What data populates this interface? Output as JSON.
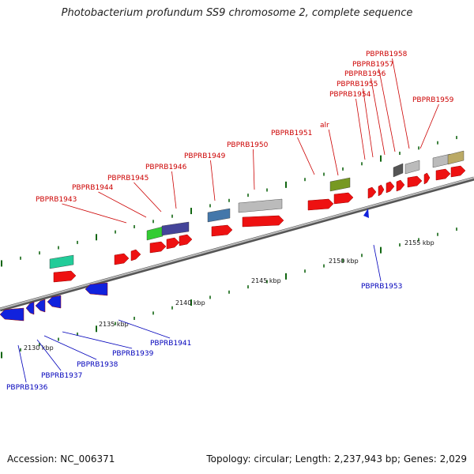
{
  "header": {
    "title": "Photobacterium profundum SS9 chromosome 2, complete sequence"
  },
  "footer": {
    "accession": "Accession: NC_006371",
    "topology": "Topology: circular; Length: 2,237,943 bp; Genes: 2,029"
  },
  "colors": {
    "forward_gene": "#ee1111",
    "reverse_gene": "#1122dd",
    "forward_label": "#cc0000",
    "reverse_label": "#0000bb",
    "backbone": "#888888",
    "tick": "#116611",
    "cog_teal": "#22cc99",
    "cog_green": "#33cc33",
    "cog_purple": "#444499",
    "cog_steel": "#4477aa",
    "cog_grey": "#bbbbbb",
    "cog_olive": "#779922",
    "cog_dark": "#555555",
    "cog_khaki": "#bbaa66"
  },
  "scale_labels": [
    "2130 kbp",
    "2135 kbp",
    "2140 kbp",
    "2145 kbp",
    "2150 kbp",
    "2155 kbp"
  ],
  "forward_genes": [
    "PBPRB1943",
    "PBPRB1944",
    "PBPRB1945",
    "PBPRB1946",
    "PBPRB1949",
    "PBPRB1950",
    "PBPRB1951",
    "alr",
    "PBPRB1954",
    "PBPRB1955",
    "PBPRB1956",
    "PBPRB1957",
    "PBPRB1958",
    "PBPRB1959"
  ],
  "reverse_genes": [
    "PBPRB1936",
    "PBPRB1937",
    "PBPRB1938",
    "PBPRB1939",
    "PBPRB1941",
    "PBPRB1953"
  ]
}
